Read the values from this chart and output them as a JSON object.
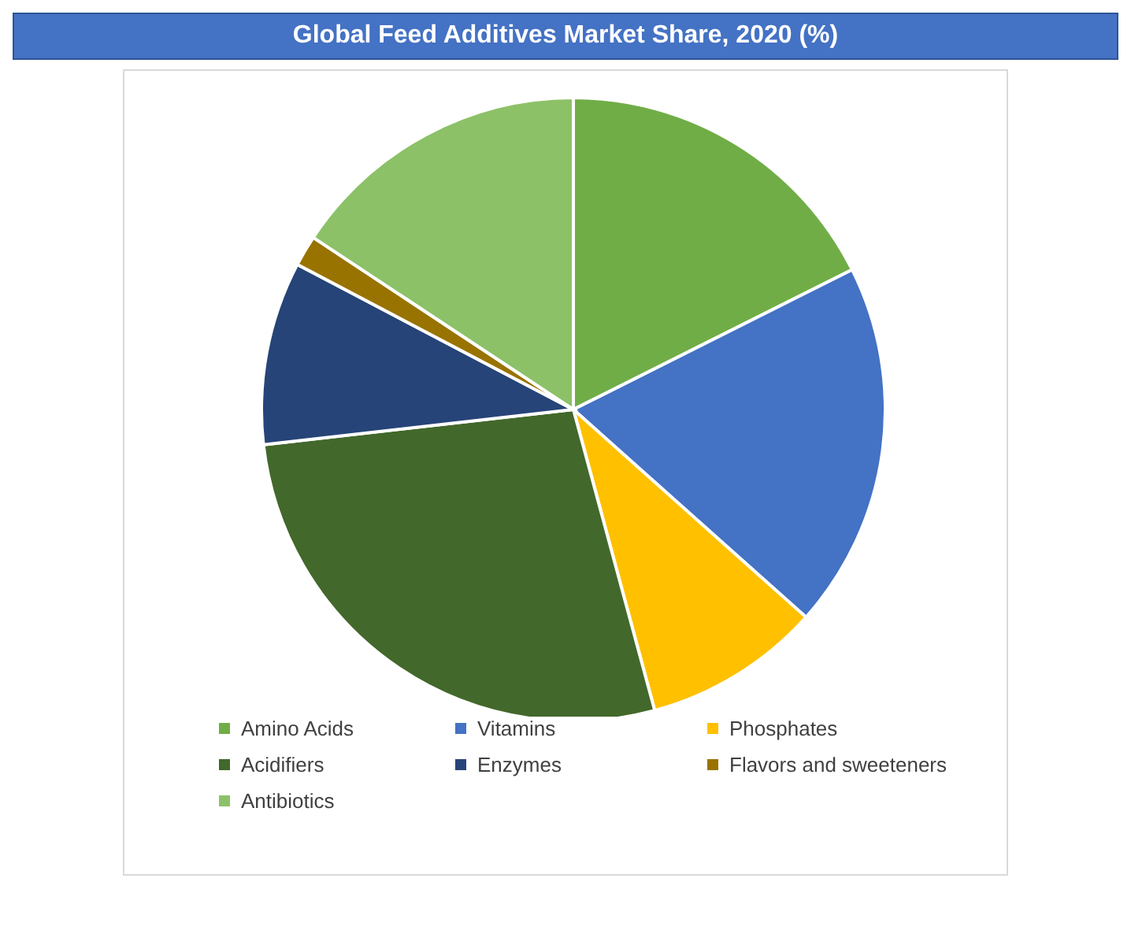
{
  "chart_data": {
    "type": "pie",
    "title": "Global Feed Additives Market Share, 2020 (%)",
    "categories": [
      "Amino Acids",
      "Vitamins",
      "Phosphates",
      "Acidifiers",
      "Enzymes",
      "Flavors and sweeteners",
      "Antibiotics"
    ],
    "values": [
      17.6,
      19,
      9.2,
      27.4,
      9.5,
      1.6,
      15.7
    ],
    "colors": [
      "#70ad47",
      "#4472c4",
      "#ffc000",
      "#43682b",
      "#264478",
      "#997300",
      "#8cc168"
    ],
    "legend": "bottom"
  }
}
